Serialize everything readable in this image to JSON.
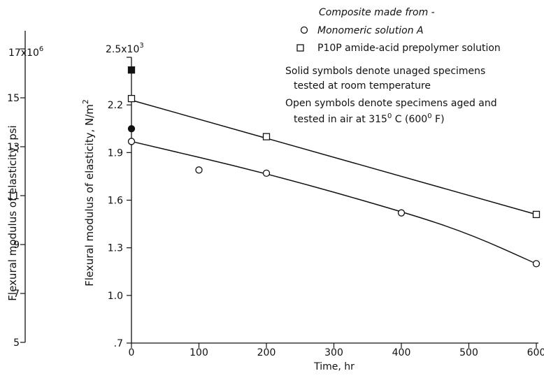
{
  "chart_data": {
    "type": "scatter",
    "xlabel": "Time, hr",
    "ylabel": "Flexural modulus of elasticity, N/m",
    "ylabel_sup": "2",
    "ylabel_secondary": "Flexural modulus of elasticity, psi",
    "xlim": [
      0,
      600
    ],
    "ylim": [
      0.7,
      2.5
    ],
    "x_ticks": [
      "0",
      "100",
      "200",
      "300",
      "400",
      "500",
      "600"
    ],
    "y_ticks": [
      ".7",
      "1.0",
      "1.3",
      "1.6",
      "1.9",
      "2.2"
    ],
    "y_top_label": "2.5x10",
    "y_top_label_exp": "3",
    "y_secondary_ticks": [
      "5",
      "7",
      "9",
      "11",
      "13",
      "15"
    ],
    "y_secondary_top_label": "17x10",
    "y_secondary_top_label_exp": "6",
    "legend": {
      "heading": "Composite made from -",
      "entries": [
        {
          "marker": "circle",
          "label": "Monomeric solution A"
        },
        {
          "marker": "square",
          "label": "P10P amide-acid prepolymer solution"
        }
      ],
      "notes": [
        "Solid symbols denote unaged specimens",
        "tested at room temperature",
        "Open symbols denote specimens aged and",
        "tested in air at 315",
        "0",
        " C (600",
        "0",
        " F)"
      ]
    },
    "series": [
      {
        "name": "Monomeric solution A",
        "marker": "circle",
        "points": [
          {
            "x": 0,
            "y": 2.05,
            "filled": true
          },
          {
            "x": 0,
            "y": 1.97,
            "filled": false
          },
          {
            "x": 100,
            "y": 1.79,
            "filled": false
          },
          {
            "x": 200,
            "y": 1.77,
            "filled": false
          },
          {
            "x": 400,
            "y": 1.52,
            "filled": false
          },
          {
            "x": 600,
            "y": 1.2,
            "filled": false
          }
        ],
        "fit": [
          [
            0,
            1.97
          ],
          [
            200,
            1.77
          ],
          [
            400,
            1.53
          ],
          [
            500,
            1.39
          ],
          [
            600,
            1.2
          ]
        ]
      },
      {
        "name": "P10P amide-acid prepolymer solution",
        "marker": "square",
        "points": [
          {
            "x": 0,
            "y": 2.42,
            "filled": true
          },
          {
            "x": 0,
            "y": 2.24,
            "filled": false
          },
          {
            "x": 200,
            "y": 2.0,
            "filled": false
          },
          {
            "x": 600,
            "y": 1.51,
            "filled": false
          }
        ],
        "fit": [
          [
            0,
            2.23
          ],
          [
            600,
            1.51
          ]
        ]
      }
    ]
  }
}
